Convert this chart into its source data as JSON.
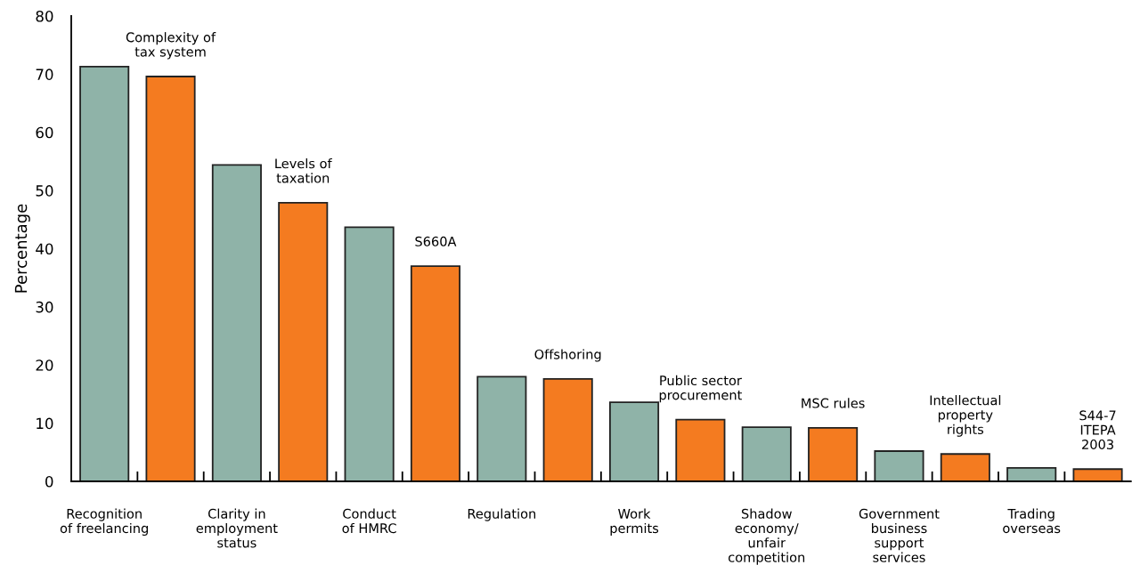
{
  "chart_data": {
    "type": "bar",
    "ylabel": "Percentage",
    "categories": [
      "Recognition\nof freelancing",
      "Complexity of\ntax system",
      "Clarity in\nemployment\nstatus",
      "Levels of\ntaxation",
      "Conduct\nof HMRC",
      "S660A",
      "Regulation",
      "Offshoring",
      "Work\npermits",
      "Public sector\nprocurement",
      "Shadow\neconomy/\nunfair\ncompetition",
      "MSC rules",
      "Government\nbusiness\nsupport\nservices",
      "Intellectual\nproperty\nrights",
      "Trading\noverseas",
      "S44-7\nITEPA\n2003"
    ],
    "values": [
      71.3,
      69.6,
      54.4,
      47.9,
      43.7,
      37.0,
      18.0,
      17.6,
      13.6,
      10.6,
      9.3,
      9.2,
      5.2,
      4.7,
      2.3,
      2.1
    ],
    "colors": [
      "#8fb3a8",
      "#f47b20",
      "#8fb3a8",
      "#f47b20",
      "#8fb3a8",
      "#f47b20",
      "#8fb3a8",
      "#f47b20",
      "#8fb3a8",
      "#f47b20",
      "#8fb3a8",
      "#f47b20",
      "#8fb3a8",
      "#f47b20",
      "#8fb3a8",
      "#f47b20"
    ],
    "ylim": [
      0,
      80
    ],
    "yticks": [
      0,
      10,
      20,
      30,
      40,
      50,
      60,
      70,
      80
    ],
    "grid": false,
    "legend": false
  }
}
